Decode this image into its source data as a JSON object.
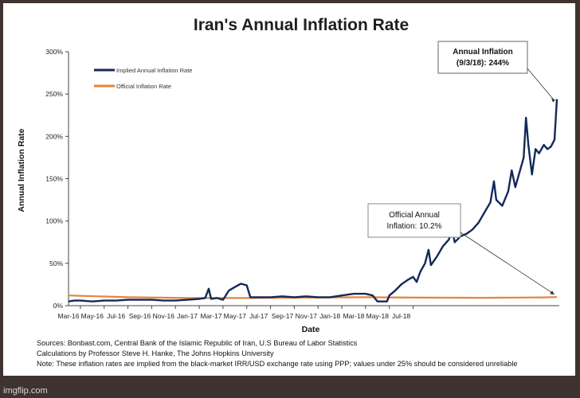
{
  "chart_data": {
    "type": "line",
    "title": "Iran's Annual Inflation Rate",
    "xlabel": "Date",
    "ylabel": "Annual Inflation Rate",
    "x_ticks": [
      "Mar-16",
      "May-16",
      "Jul-16",
      "Sep-16",
      "Nov-16",
      "Jan-17",
      "Mar-17",
      "May-17",
      "Jul-17",
      "Sep-17",
      "Nov-17",
      "Jan-18",
      "Mar-18",
      "May-18",
      "Jul-18"
    ],
    "y_ticks": [
      "0%",
      "50%",
      "100%",
      "150%",
      "200%",
      "250%",
      "300%"
    ],
    "ylim": [
      0,
      300
    ],
    "x_range_months": [
      0,
      30.5
    ],
    "grid": false,
    "legend_position": "top-left",
    "series": [
      {
        "name": "Implied Annual Inflation Rate",
        "color": "#14295a",
        "points": [
          [
            0,
            5
          ],
          [
            0.5,
            6
          ],
          [
            1,
            6
          ],
          [
            2,
            5
          ],
          [
            3,
            6
          ],
          [
            4,
            6
          ],
          [
            5,
            7
          ],
          [
            6,
            7
          ],
          [
            7,
            7
          ],
          [
            8,
            6
          ],
          [
            9,
            6
          ],
          [
            10,
            7
          ],
          [
            11,
            8
          ],
          [
            11.5,
            9
          ],
          [
            11.8,
            20
          ],
          [
            12,
            8
          ],
          [
            12.5,
            9
          ],
          [
            13,
            7
          ],
          [
            13.5,
            18
          ],
          [
            14,
            22
          ],
          [
            14.5,
            26
          ],
          [
            15,
            24
          ],
          [
            15.3,
            10
          ],
          [
            16,
            10
          ],
          [
            17,
            10
          ],
          [
            18,
            11
          ],
          [
            19,
            10
          ],
          [
            20,
            11
          ],
          [
            21,
            10
          ],
          [
            22,
            10
          ],
          [
            23,
            12
          ],
          [
            24,
            14
          ],
          [
            25,
            14
          ],
          [
            25.6,
            12
          ],
          [
            26,
            5
          ],
          [
            26.8,
            5
          ],
          [
            27,
            12
          ],
          [
            27.5,
            18
          ],
          [
            28,
            25
          ],
          [
            28.5,
            30
          ],
          [
            29,
            34
          ],
          [
            29.3,
            28
          ],
          [
            29.6,
            40
          ],
          [
            30,
            50
          ],
          [
            30.3,
            66
          ],
          [
            30.5,
            48
          ],
          [
            31,
            58
          ],
          [
            31.5,
            70
          ],
          [
            32,
            78
          ],
          [
            32.3,
            90
          ],
          [
            32.5,
            75
          ],
          [
            33,
            82
          ],
          [
            33.5,
            85
          ],
          [
            34,
            90
          ],
          [
            34.5,
            98
          ],
          [
            35,
            110
          ],
          [
            35.5,
            122
          ],
          [
            35.8,
            147
          ],
          [
            36,
            125
          ],
          [
            36.5,
            118
          ],
          [
            37,
            135
          ],
          [
            37.3,
            160
          ],
          [
            37.6,
            140
          ],
          [
            38,
            160
          ],
          [
            38.3,
            175
          ],
          [
            38.5,
            222
          ],
          [
            38.7,
            190
          ],
          [
            39,
            155
          ],
          [
            39.3,
            185
          ],
          [
            39.6,
            180
          ],
          [
            40,
            190
          ],
          [
            40.3,
            185
          ],
          [
            40.6,
            188
          ],
          [
            40.9,
            196
          ],
          [
            41.1,
            244
          ]
        ]
      },
      {
        "name": "Official Inflation Rate",
        "color": "#e8823a",
        "points": [
          [
            0,
            12
          ],
          [
            5,
            10
          ],
          [
            10,
            9
          ],
          [
            15,
            9
          ],
          [
            20,
            9.5
          ],
          [
            25,
            10
          ],
          [
            30,
            9.5
          ],
          [
            35,
            9.3
          ],
          [
            40,
            9.8
          ],
          [
            41.1,
            10.2
          ]
        ]
      }
    ],
    "annotations": [
      {
        "lines": [
          "Annual  Inflation",
          "(9/3/18): 244%"
        ],
        "bold": true
      },
      {
        "lines": [
          "Official Annual",
          "Inflation: 10.2%"
        ],
        "bold": false
      }
    ]
  },
  "notes": [
    "Sources: Bonbast.com, Central Bank of the Islamic Republic of Iran, U.S Bureau of Labor Statistics",
    "Calculations by Professor Steve H. Hanke, The Johns Hopkins University",
    "Note: These inflation rates are implied from the black-market IRR/USD exchange rate using PPP; values under 25% should be considered unreliable"
  ],
  "watermark": "imgflip.com"
}
